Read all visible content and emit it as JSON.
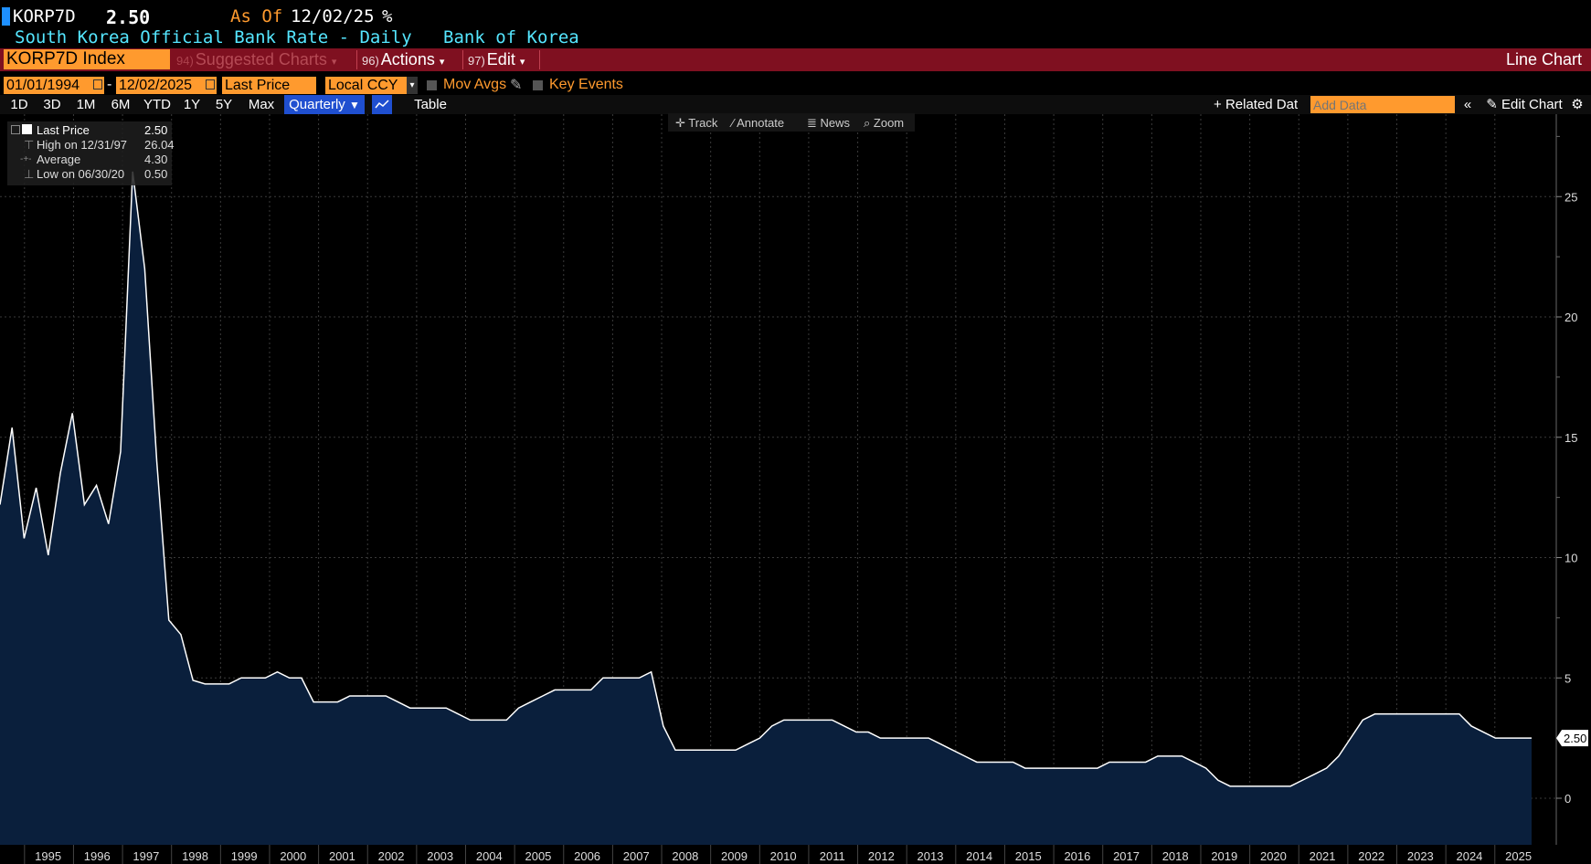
{
  "header": {
    "ticker": "KORP7D",
    "last_value": "2.50",
    "as_of_label": "As Of",
    "as_of_date": "12/02/25",
    "unit": "%",
    "description": "South Korea Official Bank Rate - Daily",
    "source": "Bank of Korea"
  },
  "toolbar": {
    "security": "KORP7D Index",
    "suggested_num": "94)",
    "suggested": "Suggested Charts",
    "actions_num": "96)",
    "actions": "Actions",
    "edit_num": "97)",
    "edit": "Edit",
    "chart_type": "Line Chart"
  },
  "params": {
    "start_date": "01/01/1994",
    "dash": "-",
    "end_date": "12/02/2025",
    "field": "Last Price",
    "currency": "Local CCY",
    "mov_avgs": "Mov Avgs",
    "key_events": "Key Events"
  },
  "ranges": [
    "1D",
    "3D",
    "1M",
    "6M",
    "YTD",
    "1Y",
    "5Y",
    "Max"
  ],
  "frequency": "Quarterly",
  "table_label": "Table",
  "related": "Related Dat",
  "add_data_placeholder": "Add Data",
  "edit_chart": "Edit Chart",
  "chart_tools": [
    "Track",
    "Annotate",
    "News",
    "Zoom"
  ],
  "legend": {
    "rows": [
      {
        "label": "Last Price",
        "value": "2.50"
      },
      {
        "label": "High on 12/31/97",
        "value": "26.04"
      },
      {
        "label": "Average",
        "value": "4.30"
      },
      {
        "label": "Low on 06/30/20",
        "value": "0.50"
      }
    ]
  },
  "colors": {
    "background": "#000000",
    "line": "#ffffff",
    "fill": "#0a1f3c",
    "accent_orange": "#ff9a2e",
    "bar_red": "#7f1020",
    "cyan": "#55e6ff"
  },
  "chart_data": {
    "type": "area",
    "xlabel": "",
    "ylabel": "",
    "ylim": [
      -2,
      28
    ],
    "yticks": [
      0,
      5,
      10,
      15,
      20,
      25
    ],
    "grid": true,
    "last_label": "2.50",
    "x_start": 1994.5,
    "x_end": 2025.75,
    "x_ticks": [
      1995,
      1996,
      1997,
      1998,
      1999,
      2000,
      2001,
      2002,
      2003,
      2004,
      2005,
      2006,
      2007,
      2008,
      2009,
      2010,
      2011,
      2012,
      2013,
      2014,
      2015,
      2016,
      2017,
      2018,
      2019,
      2020,
      2021,
      2022,
      2023,
      2024,
      2025
    ],
    "series": [
      {
        "values": [
          12.2,
          15.4,
          10.8,
          12.9,
          10.1,
          13.5,
          16.0,
          12.2,
          13.0,
          11.4,
          14.4,
          26.04,
          22.0,
          14.0,
          7.4,
          6.8,
          4.9,
          4.75,
          4.75,
          4.75,
          5.0,
          5.0,
          5.0,
          5.25,
          5.0,
          5.0,
          4.0,
          4.0,
          4.0,
          4.25,
          4.25,
          4.25,
          4.25,
          4.0,
          3.75,
          3.75,
          3.75,
          3.75,
          3.5,
          3.25,
          3.25,
          3.25,
          3.25,
          3.75,
          4.0,
          4.25,
          4.5,
          4.5,
          4.5,
          4.5,
          5.0,
          5.0,
          5.0,
          5.0,
          5.25,
          3.0,
          2.0,
          2.0,
          2.0,
          2.0,
          2.0,
          2.0,
          2.25,
          2.5,
          3.0,
          3.25,
          3.25,
          3.25,
          3.25,
          3.25,
          3.0,
          2.75,
          2.75,
          2.5,
          2.5,
          2.5,
          2.5,
          2.5,
          2.25,
          2.0,
          1.75,
          1.5,
          1.5,
          1.5,
          1.5,
          1.25,
          1.25,
          1.25,
          1.25,
          1.25,
          1.25,
          1.25,
          1.5,
          1.5,
          1.5,
          1.5,
          1.75,
          1.75,
          1.75,
          1.5,
          1.25,
          0.75,
          0.5,
          0.5,
          0.5,
          0.5,
          0.5,
          0.5,
          0.75,
          1.0,
          1.25,
          1.75,
          2.5,
          3.25,
          3.5,
          3.5,
          3.5,
          3.5,
          3.5,
          3.5,
          3.5,
          3.5,
          3.0,
          2.75,
          2.5,
          2.5,
          2.5,
          2.5
        ]
      }
    ]
  }
}
